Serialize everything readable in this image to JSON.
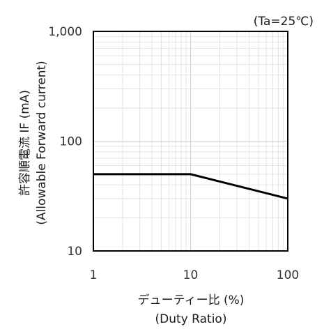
{
  "chart_data": {
    "type": "line",
    "condition": "(Ta=25℃)",
    "xlabel_line1": "デューティー比 (%)",
    "xlabel_line2": "(Duty Ratio)",
    "ylabel_line1": "許容順電流 IF (mA)",
    "ylabel_line2": "(Allowable Forward current)",
    "x_scale": "log",
    "y_scale": "log",
    "xlim": [
      1,
      100
    ],
    "ylim": [
      10,
      1000
    ],
    "x_ticks": [
      {
        "value": 1,
        "label": "1"
      },
      {
        "value": 10,
        "label": "10"
      },
      {
        "value": 100,
        "label": "100"
      }
    ],
    "y_ticks": [
      {
        "value": 10,
        "label": "10"
      },
      {
        "value": 100,
        "label": "100"
      },
      {
        "value": 1000,
        "label": "1,000"
      }
    ],
    "grid": true,
    "series": [
      {
        "x": [
          1,
          10,
          100
        ],
        "y": [
          50,
          50,
          30
        ]
      }
    ]
  }
}
